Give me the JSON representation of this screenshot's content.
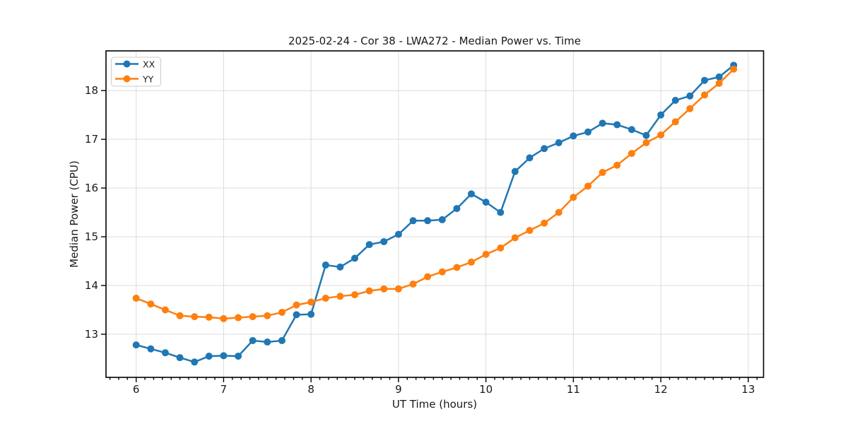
{
  "chart_data": {
    "type": "line",
    "title": "2025-02-24 - Cor 38 - LWA272 - Median Power vs. Time",
    "xlabel": "UT Time (hours)",
    "ylabel": "Median Power (CPU)",
    "xlim": [
      5.655,
      13.175
    ],
    "ylim": [
      12.115,
      18.815
    ],
    "xticks": [
      6,
      7,
      8,
      9,
      10,
      11,
      12,
      13
    ],
    "yticks": [
      13,
      14,
      15,
      16,
      17,
      18
    ],
    "x_minor_tick_step": 0.1,
    "grid": true,
    "legend_position": "upper left",
    "x": [
      6.0,
      6.167,
      6.333,
      6.5,
      6.667,
      6.833,
      7.0,
      7.167,
      7.333,
      7.5,
      7.667,
      7.833,
      8.0,
      8.167,
      8.333,
      8.5,
      8.667,
      8.833,
      9.0,
      9.167,
      9.333,
      9.5,
      9.667,
      9.833,
      10.0,
      10.167,
      10.333,
      10.5,
      10.667,
      10.833,
      11.0,
      11.167,
      11.333,
      11.5,
      11.667,
      11.833,
      12.0,
      12.167,
      12.333,
      12.5,
      12.667,
      12.833
    ],
    "series": [
      {
        "name": "XX",
        "color": "#1f77b4",
        "values": [
          12.78,
          12.7,
          12.62,
          12.52,
          12.43,
          12.55,
          12.56,
          12.55,
          12.87,
          12.84,
          12.87,
          13.4,
          13.41,
          14.42,
          14.38,
          14.56,
          14.84,
          14.9,
          15.05,
          15.33,
          15.33,
          15.35,
          15.58,
          15.88,
          15.71,
          15.5,
          16.34,
          16.62,
          16.81,
          16.93,
          17.07,
          17.15,
          17.33,
          17.3,
          17.2,
          17.08,
          17.5,
          17.8,
          17.89,
          18.21,
          18.28,
          18.52
        ]
      },
      {
        "name": "YY",
        "color": "#ff7f0e",
        "values": [
          13.74,
          13.62,
          13.5,
          13.38,
          13.36,
          13.35,
          13.32,
          13.34,
          13.36,
          13.38,
          13.45,
          13.6,
          13.66,
          13.74,
          13.78,
          13.81,
          13.89,
          13.93,
          13.93,
          14.03,
          14.18,
          14.28,
          14.37,
          14.48,
          14.64,
          14.77,
          14.98,
          15.13,
          15.28,
          15.5,
          15.81,
          16.04,
          16.32,
          16.47,
          16.71,
          16.93,
          17.09,
          17.36,
          17.63,
          17.91,
          18.15,
          18.44
        ]
      }
    ],
    "colors": {
      "background": "#ffffff",
      "grid": "#dcdcdc",
      "spine": "#000000",
      "text": "#1a1a1a"
    }
  }
}
